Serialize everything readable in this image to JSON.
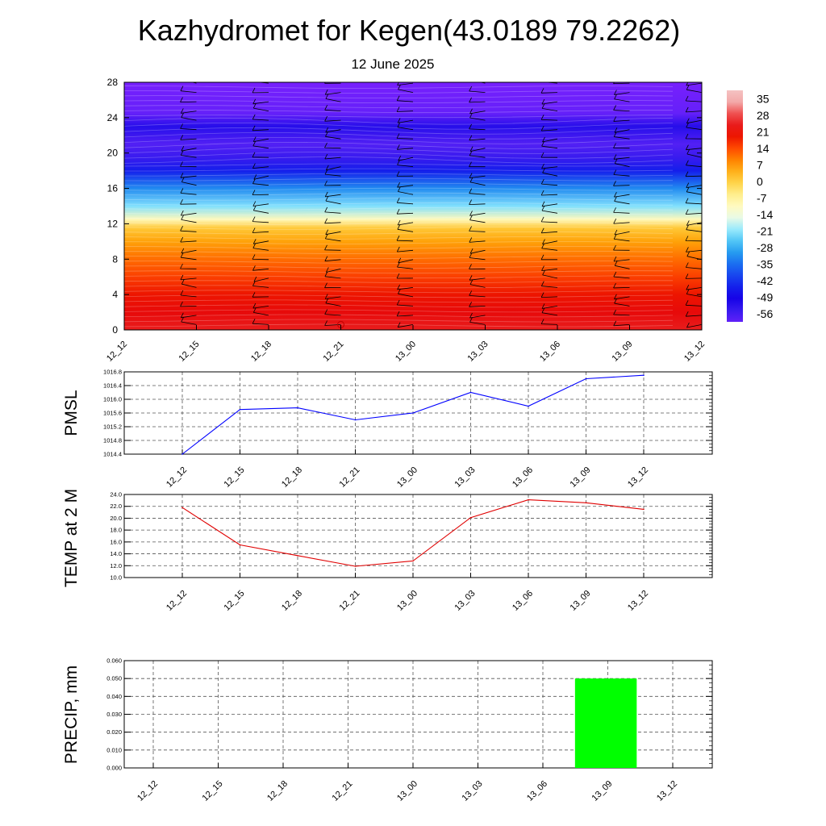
{
  "header": {
    "title": "Kazhydromet for Kegen(43.0189 79.2262)",
    "subtitle": "12 June 2025"
  },
  "colors": {
    "pmsl_line": "#0000ff",
    "temp_line": "#e00000",
    "precip_bar": "#00ff00",
    "grid": "#666666"
  },
  "chart_data": [
    {
      "type": "heatmap",
      "name": "cross-section",
      "x_categories": [
        "12_12",
        "12_15",
        "12_18",
        "12_21",
        "13_00",
        "13_03",
        "13_06",
        "13_09",
        "13_12"
      ],
      "ylim": [
        0,
        28
      ],
      "y_ticks": [
        "0",
        "4",
        "8",
        "12",
        "16",
        "20",
        "24",
        "28"
      ],
      "colorbar_ticks": [
        "35",
        "28",
        "21",
        "14",
        "7",
        "0",
        "-7",
        "-14",
        "-21",
        "-28",
        "-35",
        "-42",
        "-49",
        "-56"
      ],
      "vertical_profile": {
        "y": [
          0,
          2,
          4,
          6,
          8,
          10,
          11.5,
          12.5,
          14,
          16,
          18,
          19.5,
          21,
          23,
          24.5,
          28
        ],
        "temp": [
          24,
          22,
          19,
          15,
          11,
          6,
          1,
          -10,
          -22,
          -32,
          -45,
          -55,
          -58,
          -52,
          -60,
          -62
        ]
      },
      "legend": "colorbar-right",
      "grid": false,
      "annotations": [
        "wind barbs"
      ]
    },
    {
      "type": "line",
      "name": "PMSL",
      "ylabel": "PMSL",
      "categories": [
        "12_12",
        "12_15",
        "12_18",
        "12_21",
        "13_00",
        "13_03",
        "13_06",
        "13_09",
        "13_12"
      ],
      "values": [
        1014.4,
        1015.7,
        1015.75,
        1015.4,
        1015.6,
        1016.2,
        1015.8,
        1016.6,
        1016.7
      ],
      "ylim": [
        1014.4,
        1016.8
      ],
      "y_ticks": [
        "1014.4",
        "1014.8",
        "1015.2",
        "1015.6",
        "1016.0",
        "1016.4",
        "1016.8"
      ],
      "grid": true
    },
    {
      "type": "line",
      "name": "TEMP",
      "ylabel": "TEMP at 2 M",
      "categories": [
        "12_12",
        "12_15",
        "12_18",
        "12_21",
        "13_00",
        "13_03",
        "13_06",
        "13_09",
        "13_12"
      ],
      "values": [
        21.8,
        15.5,
        13.7,
        11.9,
        12.8,
        20.1,
        23.1,
        22.6,
        21.5
      ],
      "ylim": [
        10.0,
        24.0
      ],
      "y_ticks": [
        "10.0",
        "12.0",
        "14.0",
        "16.0",
        "18.0",
        "20.0",
        "22.0",
        "24.0"
      ],
      "grid": true
    },
    {
      "type": "bar",
      "name": "PRECIP",
      "ylabel": "PRECIP, mm",
      "categories": [
        "12_12",
        "12_15",
        "12_18",
        "12_21",
        "13_00",
        "13_03",
        "13_06",
        "13_09",
        "13_12"
      ],
      "values": [
        0,
        0,
        0,
        0,
        0,
        0,
        0,
        0.05,
        0
      ],
      "ylim": [
        0,
        0.06
      ],
      "y_ticks": [
        "0.000",
        "0.010",
        "0.020",
        "0.030",
        "0.040",
        "0.050",
        "0.060"
      ],
      "grid": true
    }
  ]
}
